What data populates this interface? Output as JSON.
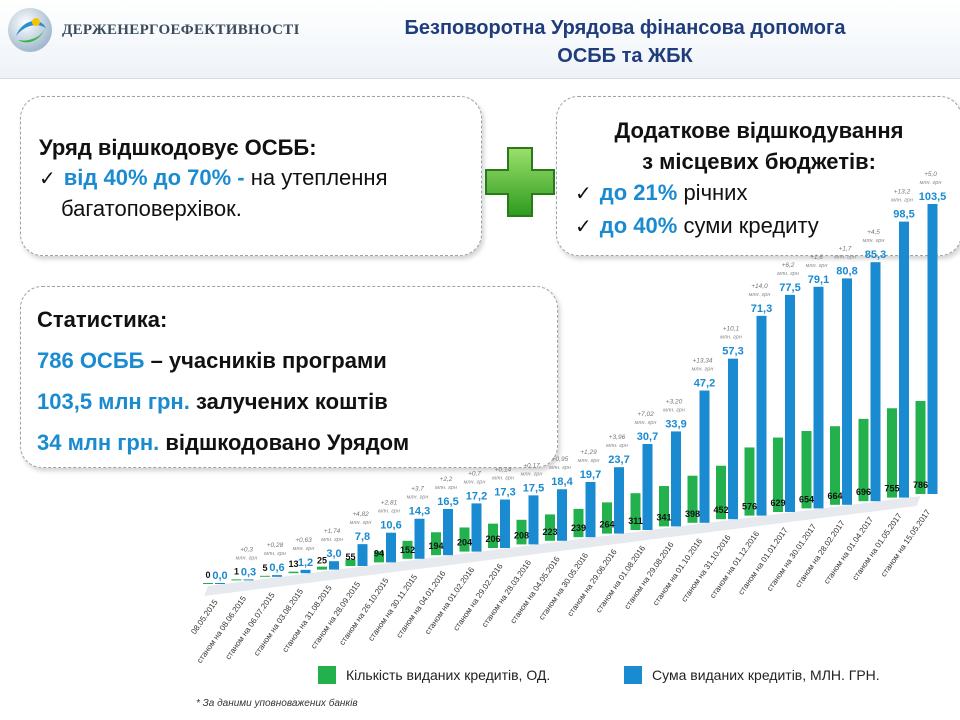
{
  "header": {
    "org_name": "ДЕРЖЕНЕРГОЕФЕКТИВНОСТІ",
    "title_line1": "Безповоротна Урядова фінансова допомога",
    "title_line2": "ОСББ та ЖБК"
  },
  "left_box": {
    "heading": "Уряд відшкодовує ОСББ:",
    "accent": "від 40% до 70% -",
    "text1": " на утеплення",
    "text2": "багатоповерхівок."
  },
  "right_box": {
    "heading1": "Додаткове відшкодування",
    "heading2": "з місцевих бюджетів:",
    "item1_accent": "до 21%",
    "item1_text": " річних",
    "item2_accent": "до 40%",
    "item2_text": " суми кредиту"
  },
  "stats": {
    "heading": "Статистика:",
    "l1_accent": "786 ОСББ",
    "l1_text": " – учасників програми",
    "l2_accent": "103,5 млн грн.",
    "l2_text": " залучених коштів",
    "l3_accent": "34 млн грн.",
    "l3_text": " відшкодовано Урядом"
  },
  "footnote": "* За даними уповноважених банків",
  "colors": {
    "green": "#22b14c",
    "blue": "#1a8bd0",
    "title": "#1f3d7a"
  },
  "chart_data": {
    "type": "bar",
    "categories": [
      "08.05.2015",
      "станом на 08.06.2015",
      "станом на 06.07.2015",
      "станом на 03.08.2015",
      "станом на 31.08.2015",
      "станом на 28.09.2015",
      "станом на 26.10.2015",
      "станом на 30.11.2015",
      "станом на 04.01.2016",
      "станом на 01.02.2016",
      "станом на 29.02.2016",
      "станом на 28.03.2016",
      "станом на 04.05.2016",
      "станом на 30.05.2016",
      "станом на 29.06.2016",
      "станом на 01.08.2016",
      "станом на 29.08.2016",
      "станом на 01.10.2016",
      "станом на 31.10.2016",
      "станом на 01.12.2016",
      "станом на 01.01.2017",
      "станом на 30.01.2017",
      "станом на 28.02.2017",
      "станом на 01.04.2017",
      "станом на 01.05.2017",
      "станом на 15.05.2017"
    ],
    "series": [
      {
        "name": "Кількість виданих кредитів, ОД.",
        "color": "#22b14c",
        "values": [
          0,
          1,
          5,
          13,
          25,
          55,
          94,
          152,
          194,
          204,
          206,
          208,
          223,
          239,
          264,
          311,
          341,
          398,
          452,
          576,
          629,
          654,
          664,
          696,
          755,
          786
        ],
        "labels": [
          "0",
          "1",
          "5",
          "13",
          "25",
          "55",
          "94",
          "152",
          "194",
          "204",
          "206",
          "208",
          "223",
          "239",
          "264",
          "311",
          "341",
          "398",
          "452",
          "576",
          "629",
          "654",
          "664",
          "696",
          "755",
          "786"
        ]
      },
      {
        "name": "Сума виданих кредитів, МЛН. ГРН.",
        "color": "#1a8bd0",
        "values": [
          0.0,
          0.3,
          0.6,
          1.2,
          3.0,
          7.8,
          10.6,
          14.3,
          16.5,
          17.2,
          17.3,
          17.5,
          18.4,
          19.7,
          23.7,
          30.7,
          33.9,
          47.2,
          57.3,
          71.3,
          77.5,
          79.1,
          80.8,
          85.3,
          98.5,
          103.5
        ],
        "labels": [
          "0,0",
          "0,3",
          "0,6",
          "1,2",
          "3,0",
          "7,8",
          "10,6",
          "14,3",
          "16,5",
          "17,2",
          "17,3",
          "17,5",
          "18,4",
          "19,7",
          "23,7",
          "30,7",
          "33,9",
          "47,2",
          "57,3",
          "71,3",
          "77,5",
          "79,1",
          "80,8",
          "85,3",
          "98,5",
          "103,5"
        ]
      }
    ],
    "increments": [
      "",
      "+0,3",
      "+0,28",
      "+0,63",
      "+1,74",
      "+4,82",
      "+2,81",
      "+3,7",
      "+2,2",
      "+0,7",
      "+0,14",
      "+0,17",
      "+0,95",
      "+1,29",
      "+3,96",
      "+7,02",
      "+3,20",
      "+13,34",
      "+10,1",
      "+14,0",
      "+6,2",
      "+1,6",
      "+1,7",
      "+4,5",
      "+13,2",
      "+5,0"
    ],
    "increment_unit": "млн. грн",
    "xlabel": "",
    "ylabel": ""
  }
}
